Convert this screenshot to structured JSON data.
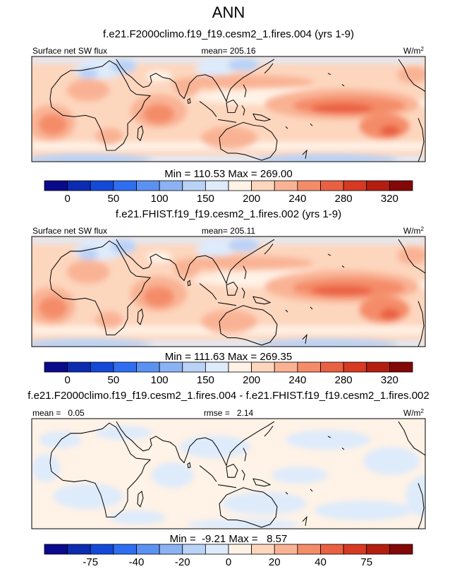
{
  "figure_title": "ANN",
  "units": {
    "base": "W/m",
    "exponent": "2"
  },
  "chart_data": [
    {
      "type": "heatmap",
      "title": "f.e21.F2000climo.f19_f19.cesm2_1.fires.004 (yrs 1-9)",
      "left_label": "Surface net SW flux",
      "center_label": "mean= 205.16",
      "min_max_label": "Min = 110.53 Max = 269.00",
      "mean": 205.16,
      "min": 110.53,
      "max": 269.0,
      "colorbar": {
        "levels": [
          0,
          25,
          50,
          75,
          100,
          125,
          150,
          175,
          200,
          220,
          240,
          260,
          280,
          300,
          320
        ],
        "tick_labels": [
          "0",
          "50",
          "100",
          "150",
          "200",
          "240",
          "280",
          "320"
        ],
        "colors": [
          "#0a0a8c",
          "#0b2bb0",
          "#1449d8",
          "#2f6ef0",
          "#5b92f2",
          "#8bb3f3",
          "#b9d2f6",
          "#deebfb",
          "#fff2e6",
          "#fdd6be",
          "#f9b394",
          "#f48c69",
          "#ea6042",
          "#d63a22",
          "#b31e10",
          "#830808"
        ]
      }
    },
    {
      "type": "heatmap",
      "title": "f.e21.FHIST.f19_f19.cesm2_1.fires.002 (yrs 1-9)",
      "left_label": "Surface net SW flux",
      "center_label": "mean= 205.11",
      "min_max_label": "Min = 111.63 Max = 269.35",
      "mean": 205.11,
      "min": 111.63,
      "max": 269.35,
      "colorbar": {
        "levels": [
          0,
          25,
          50,
          75,
          100,
          125,
          150,
          175,
          200,
          220,
          240,
          260,
          280,
          300,
          320
        ],
        "tick_labels": [
          "0",
          "50",
          "100",
          "150",
          "200",
          "240",
          "280",
          "320"
        ],
        "colors": [
          "#0a0a8c",
          "#0b2bb0",
          "#1449d8",
          "#2f6ef0",
          "#5b92f2",
          "#8bb3f3",
          "#b9d2f6",
          "#deebfb",
          "#fff2e6",
          "#fdd6be",
          "#f9b394",
          "#f48c69",
          "#ea6042",
          "#d63a22",
          "#b31e10",
          "#830808"
        ]
      }
    },
    {
      "type": "heatmap",
      "title": "f.e21.F2000climo.f19_f19.cesm2_1.fires.004 - f.e21.FHIST.f19_f19.cesm2_1.fires.002",
      "left_label": "mean =   0.05",
      "center_label": "rmse =   2.14",
      "min_max_label": "Min =  -9.21 Max =   8.57",
      "mean": 0.05,
      "rmse": 2.14,
      "min": -9.21,
      "max": 8.57,
      "colorbar": {
        "levels": [
          -100,
          -75,
          -50,
          -40,
          -30,
          -20,
          -10,
          0,
          10,
          20,
          30,
          40,
          50,
          75,
          100
        ],
        "tick_labels": [
          "-75",
          "-40",
          "-20",
          "0",
          "20",
          "40",
          "75"
        ],
        "colors": [
          "#0a0a8c",
          "#0b2bb0",
          "#1449d8",
          "#2f6ef0",
          "#5b92f2",
          "#8bb3f3",
          "#b9d2f6",
          "#deebfb",
          "#fff2e6",
          "#fdd6be",
          "#f9b394",
          "#f48c69",
          "#ea6042",
          "#d63a22",
          "#b31e10",
          "#830808"
        ]
      }
    }
  ]
}
